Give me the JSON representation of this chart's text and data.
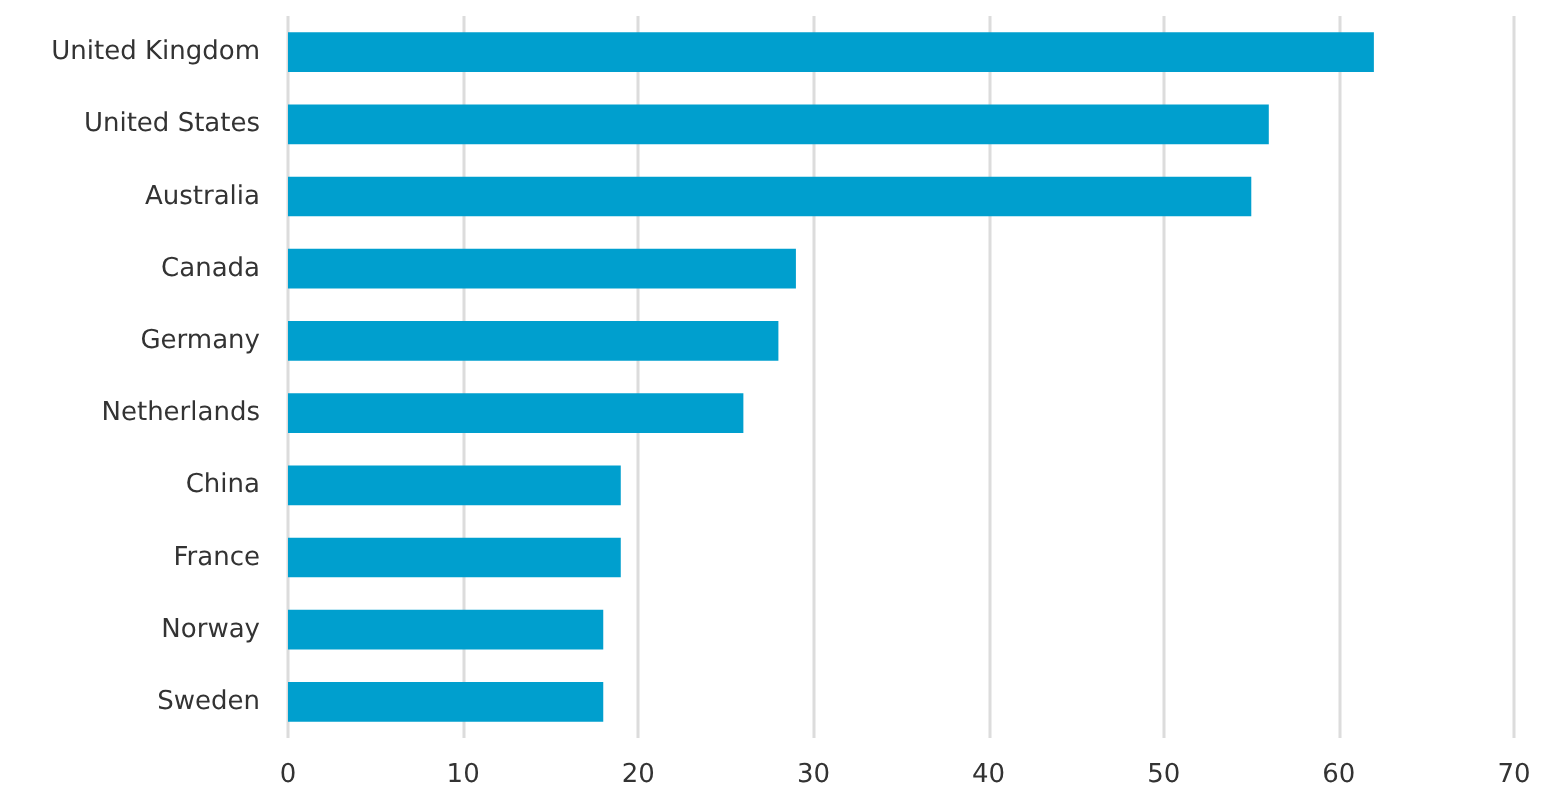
{
  "chart_data": {
    "type": "bar",
    "orientation": "horizontal",
    "categories": [
      "United Kingdom",
      "United States",
      "Australia",
      "Canada",
      "Germany",
      "Netherlands",
      "China",
      "France",
      "Norway",
      "Sweden"
    ],
    "values": [
      62,
      56,
      55,
      29,
      28,
      26,
      19,
      19,
      18,
      18
    ],
    "color": "#009fce",
    "xlim": [
      0,
      70
    ],
    "xticks": [
      0,
      10,
      20,
      30,
      40,
      50,
      60,
      70
    ],
    "grid": "x"
  }
}
